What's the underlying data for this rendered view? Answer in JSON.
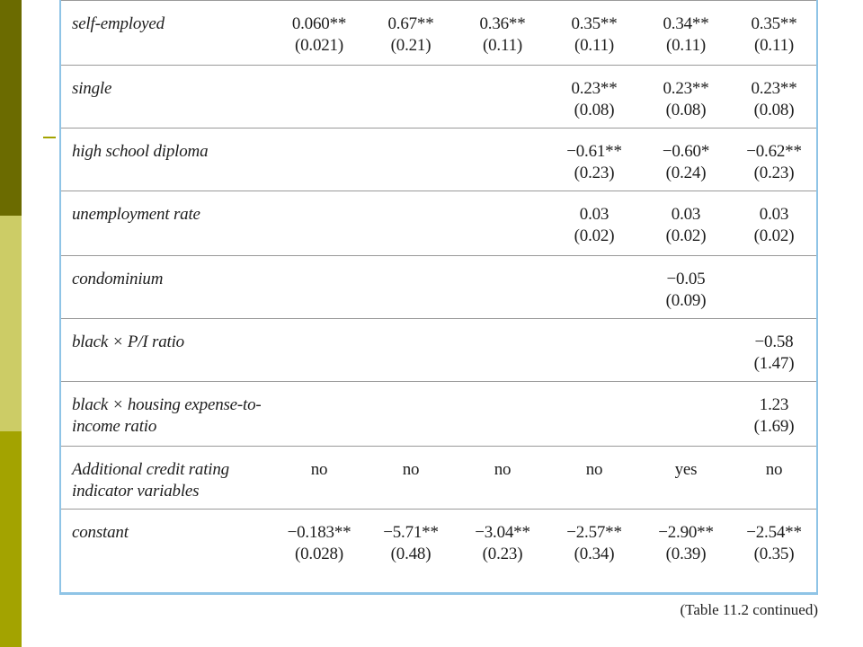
{
  "table": {
    "rows": [
      {
        "label": "self-employed",
        "cells": [
          [
            "0.060**",
            "(0.021)"
          ],
          [
            "0.67**",
            "(0.21)"
          ],
          [
            "0.36**",
            "(0.11)"
          ],
          [
            "0.35**",
            "(0.11)"
          ],
          [
            "0.34**",
            "(0.11)"
          ],
          [
            "0.35**",
            "(0.11)"
          ]
        ]
      },
      {
        "label": "single",
        "cells": [
          [
            "",
            ""
          ],
          [
            "",
            ""
          ],
          [
            "",
            ""
          ],
          [
            "0.23**",
            "(0.08)"
          ],
          [
            "0.23**",
            "(0.08)"
          ],
          [
            "0.23**",
            "(0.08)"
          ]
        ]
      },
      {
        "label": "high school diploma",
        "cells": [
          [
            "",
            ""
          ],
          [
            "",
            ""
          ],
          [
            "",
            ""
          ],
          [
            "−0.61**",
            "(0.23)"
          ],
          [
            "−0.60*",
            "(0.24)"
          ],
          [
            "−0.62**",
            "(0.23)"
          ]
        ]
      },
      {
        "label": "unemployment rate",
        "cells": [
          [
            "",
            ""
          ],
          [
            "",
            ""
          ],
          [
            "",
            ""
          ],
          [
            "0.03",
            "(0.02)"
          ],
          [
            "0.03",
            "(0.02)"
          ],
          [
            "0.03",
            "(0.02)"
          ]
        ]
      },
      {
        "label": "condominium",
        "cells": [
          [
            "",
            ""
          ],
          [
            "",
            ""
          ],
          [
            "",
            ""
          ],
          [
            "",
            ""
          ],
          [
            "−0.05",
            "(0.09)"
          ],
          [
            "",
            ""
          ]
        ]
      },
      {
        "label": "black × P/I ratio",
        "cells": [
          [
            "",
            ""
          ],
          [
            "",
            ""
          ],
          [
            "",
            ""
          ],
          [
            "",
            ""
          ],
          [
            "",
            ""
          ],
          [
            "−0.58",
            "(1.47)"
          ]
        ]
      },
      {
        "label": "black × housing expense-to-income ratio",
        "cells": [
          [
            "",
            ""
          ],
          [
            "",
            ""
          ],
          [
            "",
            ""
          ],
          [
            "",
            ""
          ],
          [
            "",
            ""
          ],
          [
            "1.23",
            "(1.69)"
          ]
        ]
      },
      {
        "label": "Additional credit rating indicator variables",
        "cells": [
          [
            "no",
            ""
          ],
          [
            "no",
            ""
          ],
          [
            "no",
            ""
          ],
          [
            "no",
            ""
          ],
          [
            "yes",
            ""
          ],
          [
            "no",
            ""
          ]
        ]
      },
      {
        "label": "constant",
        "cells": [
          [
            "−0.183**",
            "(0.028)"
          ],
          [
            "−5.71**",
            "(0.48)"
          ],
          [
            "−3.04**",
            "(0.23)"
          ],
          [
            "−2.57**",
            "(0.34)"
          ],
          [
            "−2.90**",
            "(0.39)"
          ],
          [
            "−2.54**",
            "(0.35)"
          ]
        ]
      }
    ]
  },
  "caption": "(Table 11.2 continued)"
}
